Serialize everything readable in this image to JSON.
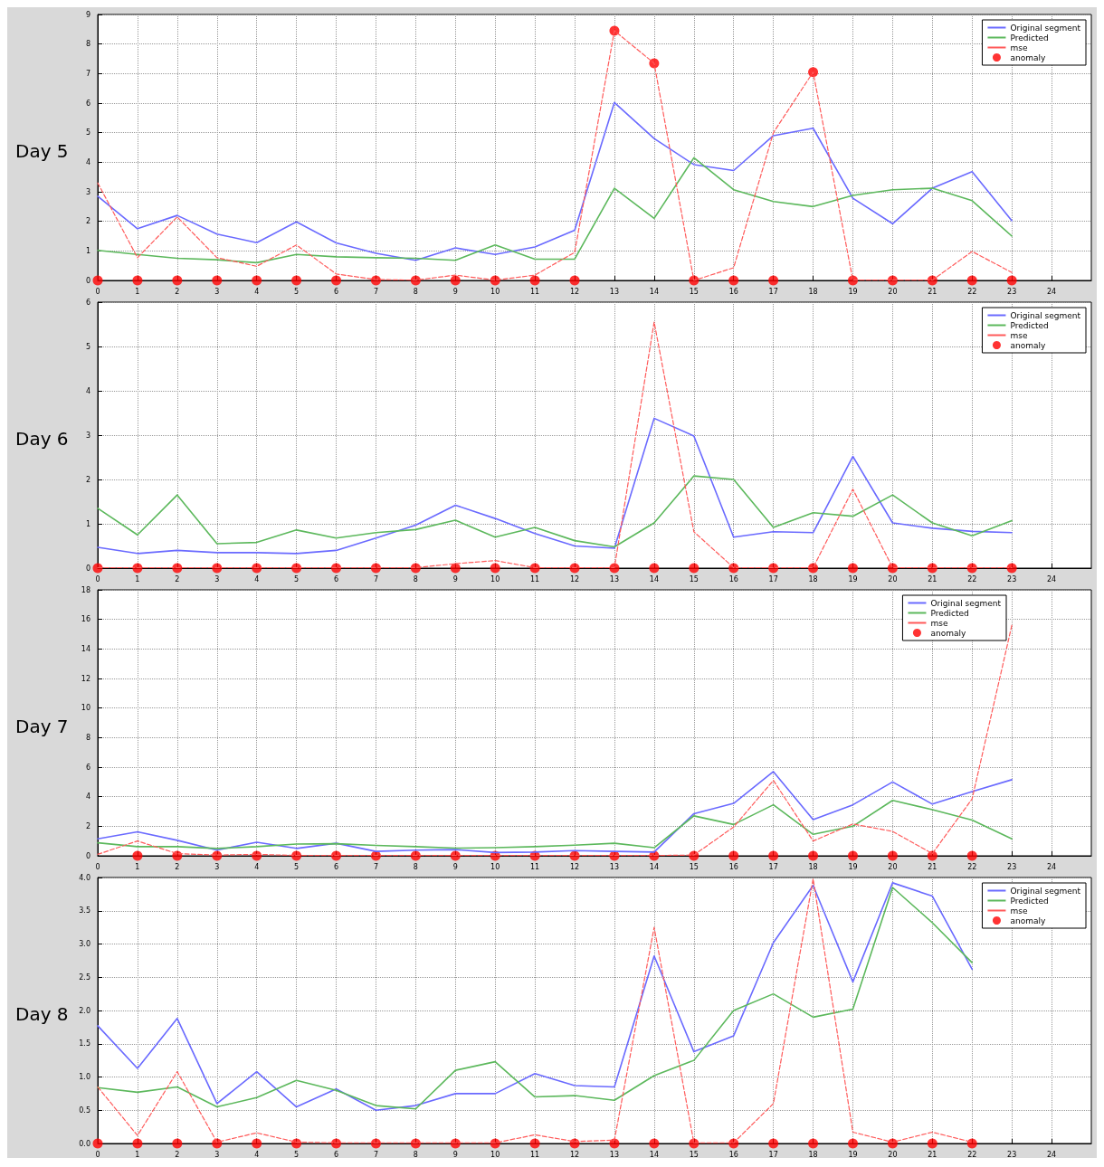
{
  "chart_data": [
    {
      "type": "line",
      "title": "Day 5",
      "xlim": [
        0,
        25
      ],
      "xticks": [
        0,
        1,
        2,
        3,
        4,
        5,
        6,
        7,
        8,
        9,
        10,
        11,
        12,
        13,
        14,
        15,
        16,
        17,
        18,
        19,
        20,
        21,
        22,
        23,
        24
      ],
      "ylim": [
        0,
        9
      ],
      "yticks": [
        0,
        1,
        2,
        3,
        4,
        5,
        6,
        7,
        8,
        9
      ],
      "grid": true,
      "legend": "top right",
      "marker": "none",
      "line_style": "solid",
      "x": [
        0,
        1,
        2,
        3,
        4,
        5,
        6,
        7,
        8,
        9,
        10,
        11,
        12,
        13,
        14,
        15,
        16,
        17,
        18,
        19,
        20,
        21,
        22,
        23
      ],
      "series": [
        {
          "name": "Original segment",
          "color": "#6a6aff",
          "values": [
            2.85,
            1.75,
            2.2,
            1.57,
            1.28,
            1.98,
            1.27,
            0.92,
            0.68,
            1.1,
            0.88,
            1.13,
            1.7,
            6.02,
            4.8,
            3.92,
            3.72,
            4.9,
            5.15,
            2.78,
            1.92,
            3.12,
            3.68,
            2.02
          ]
        },
        {
          "name": "Predicted",
          "color": "#5cb85c",
          "values": [
            1.02,
            0.88,
            0.75,
            0.7,
            0.6,
            0.88,
            0.8,
            0.77,
            0.75,
            0.68,
            1.2,
            0.72,
            0.72,
            3.12,
            2.1,
            4.15,
            3.07,
            2.67,
            2.5,
            2.88,
            3.07,
            3.12,
            2.7,
            1.5
          ]
        },
        {
          "name": "mse",
          "color": "#ff5a5a",
          "line_style": "dashed",
          "values": [
            3.3,
            0.77,
            2.15,
            0.77,
            0.48,
            1.2,
            0.22,
            0.03,
            0.01,
            0.18,
            0.01,
            0.18,
            0.95,
            8.45,
            7.35,
            0.0,
            0.43,
            5.0,
            7.05,
            0.01,
            0.01,
            0.01,
            0.98,
            0.27
          ]
        },
        {
          "name": "anomaly",
          "color": "#ff0000",
          "type": "scatter",
          "marker": "circle",
          "values": [
            0,
            0,
            0,
            0,
            0,
            0,
            0,
            0,
            0,
            0,
            0,
            0,
            0,
            8.45,
            7.35,
            0,
            0,
            0,
            7.05,
            0,
            0,
            0,
            0,
            0
          ]
        }
      ]
    },
    {
      "type": "line",
      "title": "Day 6",
      "xlim": [
        0,
        25
      ],
      "xticks": [
        0,
        1,
        2,
        3,
        4,
        5,
        6,
        7,
        8,
        9,
        10,
        11,
        12,
        13,
        14,
        15,
        16,
        17,
        18,
        19,
        20,
        21,
        22,
        23,
        24
      ],
      "ylim": [
        0,
        6
      ],
      "yticks": [
        0,
        1,
        2,
        3,
        4,
        5,
        6
      ],
      "grid": true,
      "legend": "top right",
      "marker": "none",
      "line_style": "solid",
      "x": [
        0,
        1,
        2,
        3,
        4,
        5,
        6,
        7,
        8,
        9,
        10,
        11,
        12,
        13,
        14,
        15,
        16,
        17,
        18,
        19,
        20,
        21,
        22,
        23
      ],
      "series": [
        {
          "name": "Original segment",
          "color": "#6a6aff",
          "values": [
            0.47,
            0.33,
            0.4,
            0.35,
            0.35,
            0.33,
            0.4,
            0.68,
            0.97,
            1.42,
            1.12,
            0.78,
            0.5,
            0.45,
            3.38,
            2.98,
            0.7,
            0.82,
            0.8,
            2.52,
            1.02,
            0.9,
            0.83,
            0.8
          ]
        },
        {
          "name": "Predicted",
          "color": "#5cb85c",
          "values": [
            1.35,
            0.75,
            1.65,
            0.55,
            0.58,
            0.86,
            0.68,
            0.8,
            0.87,
            1.08,
            0.7,
            0.92,
            0.62,
            0.48,
            1.02,
            2.08,
            2.0,
            0.92,
            1.25,
            1.17,
            1.65,
            1.02,
            0.73,
            1.07
          ]
        },
        {
          "name": "mse",
          "color": "#ff5a5a",
          "line_style": "dashed",
          "values": [
            0.01,
            0.01,
            0.01,
            0.01,
            0.01,
            0.01,
            0.01,
            0.01,
            0.01,
            0.1,
            0.17,
            0.01,
            0.01,
            0.01,
            5.55,
            0.82,
            0.01,
            0.01,
            0.01,
            1.78,
            0.01,
            0.01,
            0.01,
            0.01
          ]
        },
        {
          "name": "anomaly",
          "color": "#ff0000",
          "type": "scatter",
          "marker": "circle",
          "values": [
            0,
            0,
            0,
            0,
            0,
            0,
            0,
            0,
            0,
            0,
            0,
            0,
            0,
            0,
            0,
            0,
            0,
            0,
            0,
            0,
            0,
            0,
            0,
            0
          ]
        }
      ]
    },
    {
      "type": "line",
      "title": "Day 7",
      "xlim": [
        0,
        25
      ],
      "xticks": [
        0,
        1,
        2,
        3,
        4,
        5,
        6,
        7,
        8,
        9,
        10,
        11,
        12,
        13,
        14,
        15,
        16,
        17,
        18,
        19,
        20,
        21,
        22,
        23,
        24
      ],
      "ylim": [
        0,
        18
      ],
      "yticks": [
        0,
        2,
        4,
        6,
        8,
        10,
        12,
        14,
        16,
        18
      ],
      "grid": true,
      "legend": "top right",
      "marker": "none",
      "line_style": "solid",
      "x": [
        0,
        1,
        2,
        3,
        4,
        5,
        6,
        7,
        8,
        9,
        10,
        11,
        12,
        13,
        14,
        15,
        16,
        17,
        18,
        19,
        20,
        21,
        22,
        23
      ],
      "series": [
        {
          "name": "Original segment",
          "color": "#6a6aff",
          "values": [
            1.15,
            1.62,
            1.05,
            0.38,
            0.92,
            0.5,
            0.85,
            0.3,
            0.38,
            0.42,
            0.22,
            0.25,
            0.35,
            0.3,
            0.25,
            2.85,
            3.55,
            5.7,
            2.45,
            3.45,
            5.0,
            3.5,
            4.35,
            5.15
          ]
        },
        {
          "name": "Predicted",
          "color": "#5cb85c",
          "values": [
            0.88,
            0.62,
            0.62,
            0.5,
            0.62,
            0.8,
            0.82,
            0.7,
            0.62,
            0.52,
            0.55,
            0.62,
            0.72,
            0.85,
            0.55,
            2.7,
            2.12,
            3.45,
            1.45,
            2.0,
            3.75,
            3.12,
            2.42,
            1.15
          ]
        },
        {
          "name": "mse",
          "color": "#ff5a5a",
          "line_style": "dashed",
          "values": [
            0.1,
            1.0,
            0.15,
            0.05,
            0.1,
            0.02,
            0.02,
            0.02,
            0.02,
            0.02,
            0.02,
            0.02,
            0.02,
            0.02,
            0.02,
            0.05,
            1.95,
            5.1,
            1.0,
            2.15,
            1.65,
            0.15,
            3.85,
            15.6
          ]
        },
        {
          "name": "anomaly",
          "color": "#ff0000",
          "type": "scatter",
          "marker": "circle",
          "values": [
            null,
            0,
            0,
            0,
            0,
            0,
            0,
            0,
            0,
            0,
            0,
            0,
            0,
            0,
            0,
            0,
            0,
            0,
            0,
            0,
            0,
            0,
            0,
            null
          ]
        }
      ]
    },
    {
      "type": "line",
      "title": "Day 8",
      "xlim": [
        0,
        25
      ],
      "xticks": [
        0,
        1,
        2,
        3,
        4,
        5,
        6,
        7,
        8,
        9,
        10,
        11,
        12,
        13,
        14,
        15,
        16,
        17,
        18,
        19,
        20,
        21,
        22,
        23,
        24
      ],
      "ylim": [
        0,
        4
      ],
      "yticks": [
        {
          "value": 0,
          "label": "0.0"
        },
        {
          "value": 0.5,
          "label": "0.5"
        },
        {
          "value": 1,
          "label": "1.0"
        },
        {
          "value": 1.5,
          "label": "1.5"
        },
        {
          "value": 2,
          "label": "2.0"
        },
        {
          "value": 2.5,
          "label": "2.5"
        },
        {
          "value": 3,
          "label": "3.0"
        },
        {
          "value": 3.5,
          "label": "3.5"
        },
        {
          "value": 4,
          "label": "4.0"
        }
      ],
      "grid": true,
      "legend": "top right",
      "marker": "none",
      "line_style": "solid",
      "x": [
        0,
        1,
        2,
        3,
        4,
        5,
        6,
        7,
        8,
        9,
        10,
        11,
        12,
        13,
        14,
        15,
        16,
        17,
        18,
        19,
        20,
        21,
        22
      ],
      "series": [
        {
          "name": "Original segment",
          "color": "#6a6aff",
          "values": [
            1.77,
            1.13,
            1.88,
            0.6,
            1.08,
            0.55,
            0.82,
            0.5,
            0.57,
            0.75,
            0.75,
            1.05,
            0.87,
            0.85,
            2.82,
            1.38,
            1.62,
            3.02,
            3.88,
            2.43,
            3.92,
            3.72,
            2.62
          ]
        },
        {
          "name": "Predicted",
          "color": "#5cb85c",
          "values": [
            0.84,
            0.77,
            0.85,
            0.55,
            0.69,
            0.95,
            0.8,
            0.57,
            0.52,
            1.1,
            1.23,
            0.7,
            0.72,
            0.65,
            1.02,
            1.25,
            2.0,
            2.25,
            1.9,
            2.02,
            3.85,
            3.32,
            2.72
          ]
        },
        {
          "name": "mse",
          "color": "#ff5a5a",
          "line_style": "dashed",
          "values": [
            0.85,
            0.12,
            1.08,
            0.02,
            0.16,
            0.02,
            0.01,
            0.01,
            0.01,
            0.01,
            0.01,
            0.13,
            0.03,
            0.05,
            3.25,
            0.01,
            0.01,
            0.6,
            3.98,
            0.17,
            0.02,
            0.17,
            0.02
          ]
        },
        {
          "name": "anomaly",
          "color": "#ff0000",
          "type": "scatter",
          "marker": "circle",
          "values": [
            0,
            0,
            0,
            0,
            0,
            0,
            0,
            0,
            0,
            0,
            0,
            0,
            0,
            0,
            0,
            0,
            0,
            0,
            0,
            0,
            0,
            0,
            0
          ]
        }
      ]
    }
  ]
}
